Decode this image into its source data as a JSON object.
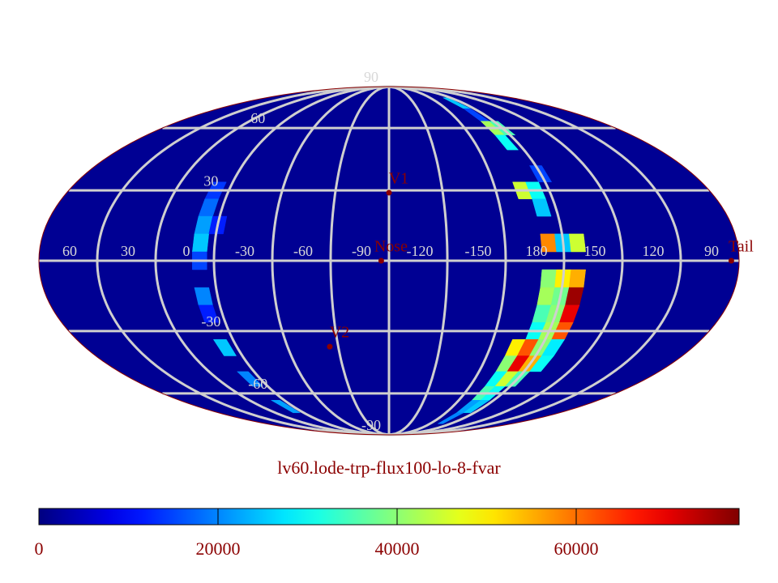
{
  "chart_data": {
    "type": "map",
    "projection": "mollweide",
    "title": "lv60.lode-trp-flux100-lo-8-fvar",
    "center_lon": -90,
    "background_value": 1500,
    "lon_labels": [
      60,
      30,
      0,
      -30,
      -60,
      -90,
      -120,
      -150,
      180,
      150,
      120,
      90
    ],
    "lat_labels": [
      90,
      60,
      30,
      -30,
      -60,
      -90
    ],
    "points": [
      {
        "label": "V1",
        "lon": -90,
        "lat": 29
      },
      {
        "label": "Nose",
        "lon": -86,
        "lat": 0
      },
      {
        "label": "V2",
        "lon": -55,
        "lat": -37
      },
      {
        "label": "Tail",
        "lon": 94,
        "lat": 0
      }
    ],
    "cells": [
      {
        "lon": -172.5,
        "lat": 75,
        "value": 25000
      },
      {
        "lon": -172.5,
        "lat": 67.5,
        "value": 15000
      },
      {
        "lon": -172.5,
        "lat": 60,
        "value": 42000
      },
      {
        "lon": 180,
        "lat": 60,
        "value": 35000
      },
      {
        "lon": -172.5,
        "lat": 52.5,
        "value": 30000
      },
      {
        "lon": 180,
        "lat": 37.5,
        "value": 15000
      },
      {
        "lon": -165,
        "lat": 30,
        "value": 45000
      },
      {
        "lon": -172.5,
        "lat": 30,
        "value": 30000
      },
      {
        "lon": -172.5,
        "lat": 22.5,
        "value": 25000
      },
      {
        "lon": -172.5,
        "lat": 7.5,
        "value": 58000
      },
      {
        "lon": 180,
        "lat": 7.5,
        "value": 25000
      },
      {
        "lon": 172.5,
        "lat": 7.5,
        "value": 45000
      },
      {
        "lon": -172.5,
        "lat": -7.5,
        "value": 40000
      },
      {
        "lon": 180,
        "lat": -7.5,
        "value": 50000
      },
      {
        "lon": 172.5,
        "lat": -7.5,
        "value": 55000
      },
      {
        "lon": -172.5,
        "lat": -15,
        "value": 42000
      },
      {
        "lon": 180,
        "lat": -15,
        "value": 38000
      },
      {
        "lon": 172.5,
        "lat": -15,
        "value": 76000
      },
      {
        "lon": -172.5,
        "lat": -22.5,
        "value": 35000
      },
      {
        "lon": 180,
        "lat": -22.5,
        "value": 40000
      },
      {
        "lon": 172.5,
        "lat": -22.5,
        "value": 70000
      },
      {
        "lon": -172.5,
        "lat": -30,
        "value": 30000
      },
      {
        "lon": 180,
        "lat": -30,
        "value": 42000
      },
      {
        "lon": 172.5,
        "lat": -30,
        "value": 62000
      },
      {
        "lon": -165,
        "lat": -37.5,
        "value": 50000
      },
      {
        "lon": -172.5,
        "lat": -37.5,
        "value": 62000
      },
      {
        "lon": 180,
        "lat": -37.5,
        "value": 40000
      },
      {
        "lon": 172.5,
        "lat": -37.5,
        "value": 28000
      },
      {
        "lon": -165,
        "lat": -45,
        "value": 40000
      },
      {
        "lon": -172.5,
        "lat": -45,
        "value": 70000
      },
      {
        "lon": 180,
        "lat": -45,
        "value": 55000
      },
      {
        "lon": 172.5,
        "lat": -45,
        "value": 30000
      },
      {
        "lon": -165,
        "lat": -52.5,
        "value": 30000
      },
      {
        "lon": -172.5,
        "lat": -52.5,
        "value": 45000
      },
      {
        "lon": 180,
        "lat": -52.5,
        "value": 35000
      },
      {
        "lon": -165,
        "lat": -60,
        "value": 35000
      },
      {
        "lon": -172.5,
        "lat": -60,
        "value": 30000
      },
      {
        "lon": -165,
        "lat": -67.5,
        "value": 22000
      },
      {
        "lon": -172.5,
        "lat": -67.5,
        "value": 25000
      },
      {
        "lon": -165,
        "lat": -75,
        "value": 20000
      },
      {
        "lon": 7.5,
        "lat": 30,
        "value": 14000
      },
      {
        "lon": 7.5,
        "lat": 22.5,
        "value": 18000
      },
      {
        "lon": 7.5,
        "lat": 15,
        "value": 22000
      },
      {
        "lon": 0,
        "lat": 15,
        "value": 12000
      },
      {
        "lon": 7.5,
        "lat": 7.5,
        "value": 25000
      },
      {
        "lon": 7.5,
        "lat": 0,
        "value": 15000
      },
      {
        "lon": 7.5,
        "lat": -15,
        "value": 20000
      },
      {
        "lon": 7.5,
        "lat": -22.5,
        "value": 12000
      },
      {
        "lon": 7.5,
        "lat": -37.5,
        "value": 25000
      },
      {
        "lon": 7.5,
        "lat": -52.5,
        "value": 20000
      },
      {
        "lon": 7.5,
        "lat": -67.5,
        "value": 22000
      }
    ],
    "colorbar": {
      "colormap": "jet",
      "lim": [
        0,
        78190
      ],
      "ticks": [
        0,
        20000,
        40000,
        60000
      ]
    }
  }
}
